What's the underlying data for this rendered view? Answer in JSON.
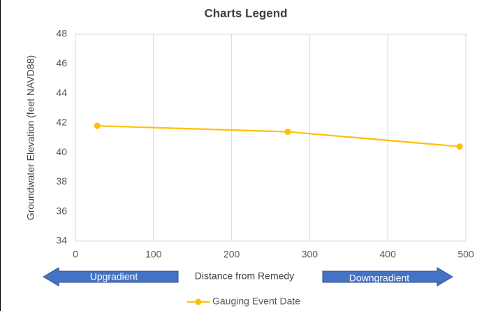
{
  "chart_data": {
    "type": "line",
    "title": "Charts Legend",
    "x_label": "Distance from Remedy",
    "y_label": "Groundwater Elevation (feet NAVD88)",
    "x": [
      28,
      272,
      492
    ],
    "series": [
      {
        "name": "Gauging Event Date",
        "color": "#FFC000",
        "values": [
          41.8,
          41.4,
          40.4
        ]
      }
    ],
    "xlim": [
      0,
      500
    ],
    "xticks": [
      0,
      100,
      200,
      300,
      400,
      500
    ],
    "ylim": [
      34,
      48
    ],
    "yticks": [
      34,
      36,
      38,
      40,
      42,
      44,
      46,
      48
    ],
    "grid": "x",
    "legend": "bottom",
    "annotations": [
      "Upgradient",
      "Downgradient"
    ]
  }
}
